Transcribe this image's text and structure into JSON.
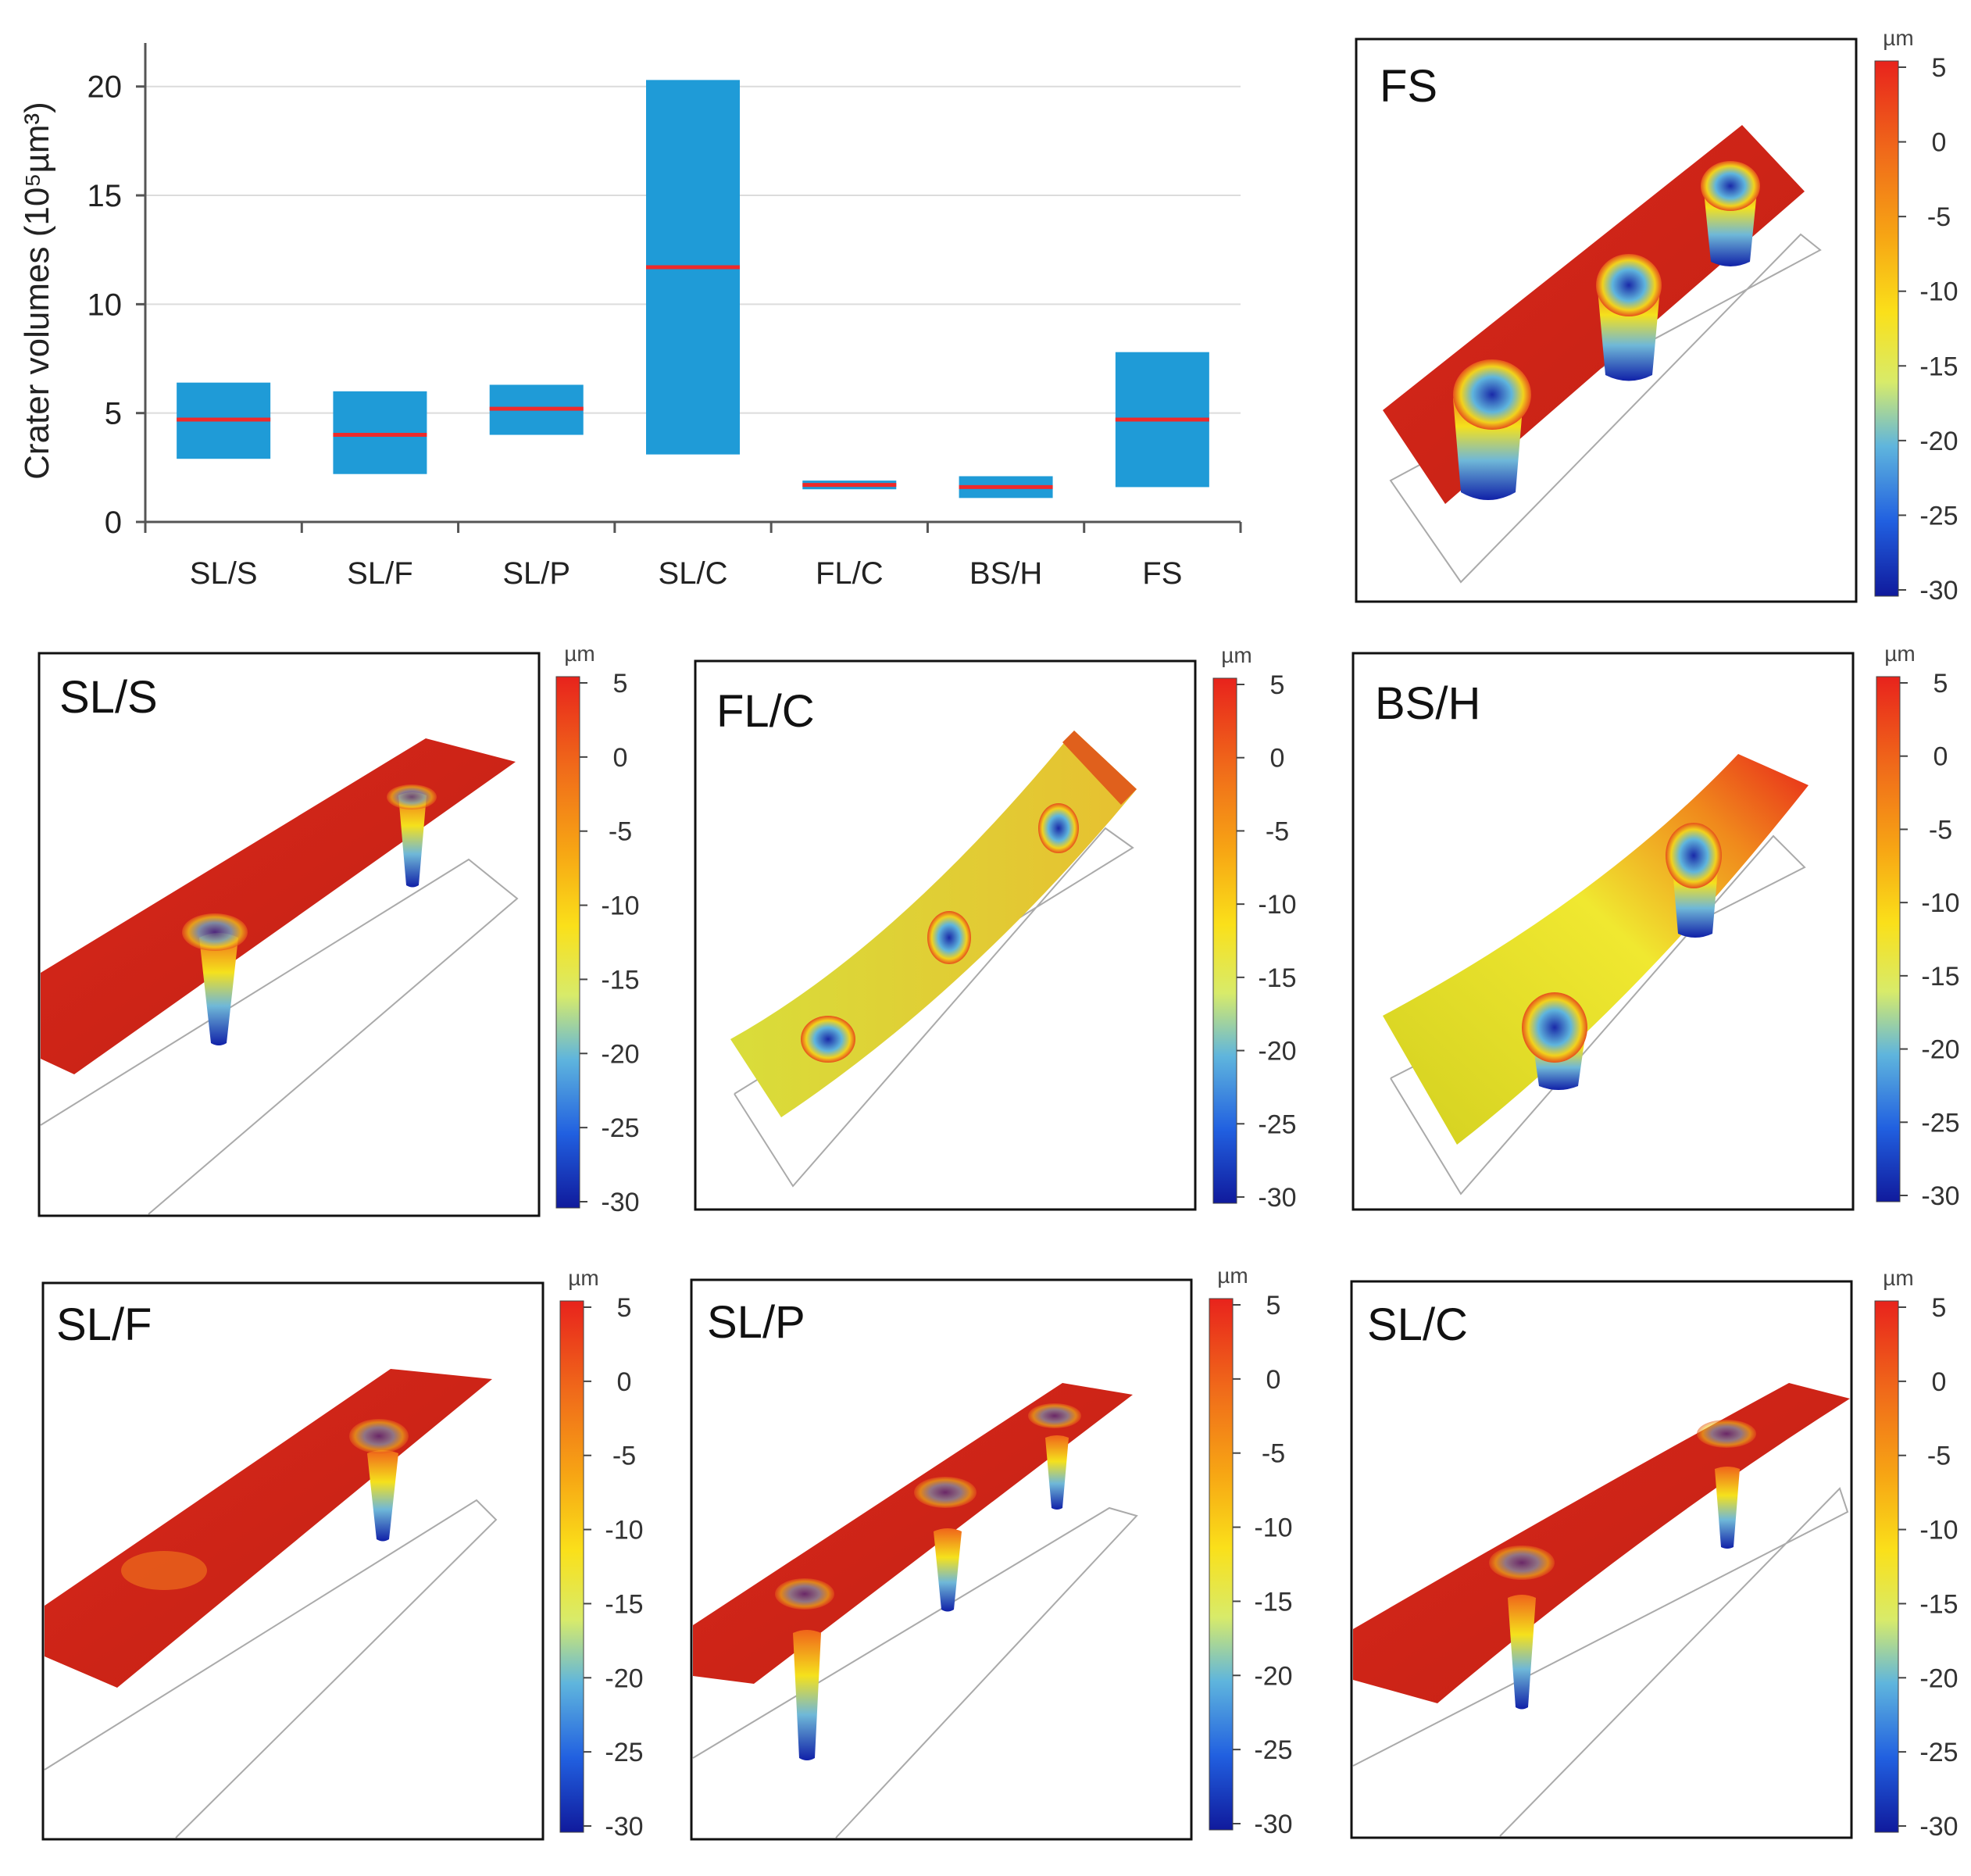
{
  "chart_data": {
    "type": "bar",
    "subtype": "floating-range-with-median",
    "ylabel": "Crater volumes (10⁵µm³)",
    "ylim": [
      0,
      22
    ],
    "yticks": [
      0,
      5,
      10,
      15,
      20
    ],
    "grid": true,
    "categories": [
      "SL/S",
      "SL/F",
      "SL/P",
      "SL/C",
      "FL/C",
      "BS/H",
      "FS"
    ],
    "ranges": [
      {
        "min": 2.9,
        "max": 6.4,
        "median": 4.7
      },
      {
        "min": 2.2,
        "max": 6.0,
        "median": 4.0
      },
      {
        "min": 4.0,
        "max": 6.3,
        "median": 5.2
      },
      {
        "min": 3.1,
        "max": 20.3,
        "median": 11.7
      },
      {
        "min": 1.5,
        "max": 1.9,
        "median": 1.7
      },
      {
        "min": 1.1,
        "max": 2.1,
        "median": 1.6
      },
      {
        "min": 1.6,
        "max": 7.8,
        "median": 4.7
      }
    ],
    "bar_color": "#1f9bd7",
    "median_color": "#ee2a2a"
  },
  "colorbar": {
    "unit": "µm",
    "ticks": [
      "5",
      "0",
      "-5",
      "-10",
      "-15",
      "-20",
      "-25",
      "-30"
    ],
    "colors": [
      "#e8231c",
      "#f06a1a",
      "#f7a614",
      "#fae01a",
      "#e6ef5a",
      "#7fc7d6",
      "#2a6fe0",
      "#101a9c"
    ]
  },
  "panels": [
    {
      "id": "fs",
      "label": "FS"
    },
    {
      "id": "sls",
      "label": "SL/S"
    },
    {
      "id": "flc",
      "label": "FL/C"
    },
    {
      "id": "bsh",
      "label": "BS/H"
    },
    {
      "id": "slf",
      "label": "SL/F"
    },
    {
      "id": "slp",
      "label": "SL/P"
    },
    {
      "id": "slc",
      "label": "SL/C"
    }
  ]
}
